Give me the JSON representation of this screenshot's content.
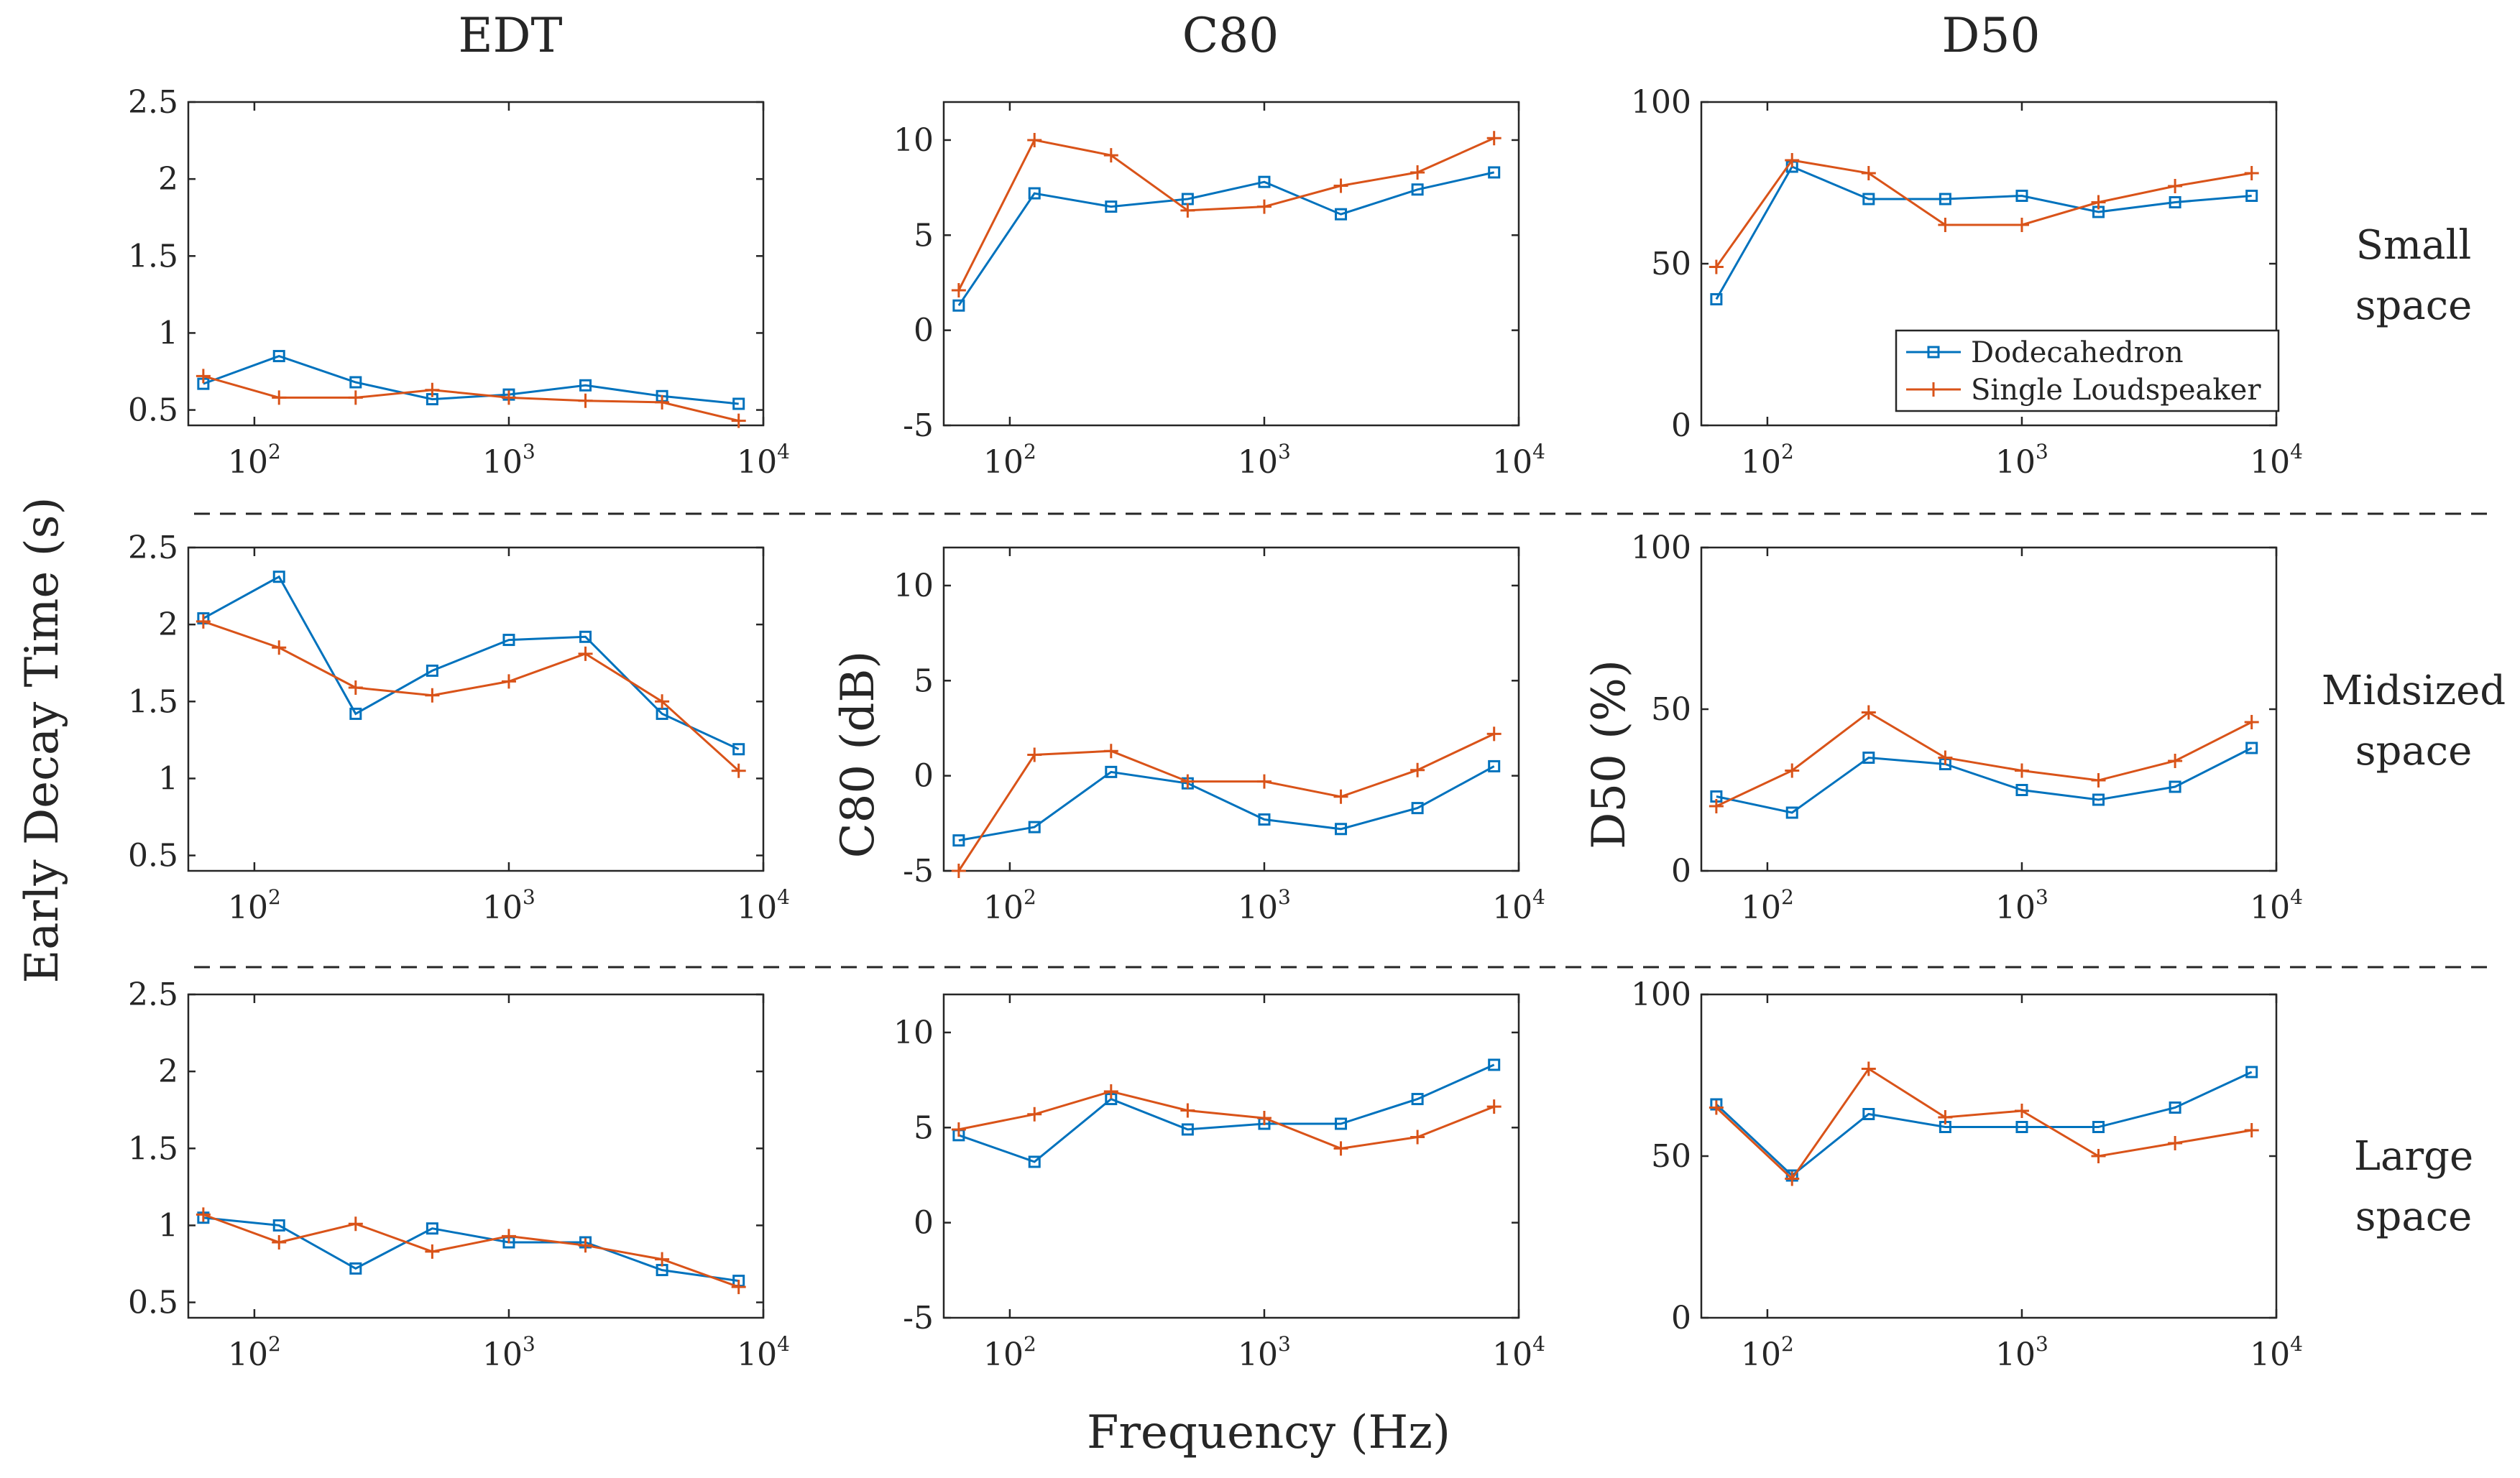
{
  "column_titles": [
    "EDT",
    "C80",
    "D50"
  ],
  "row_labels": [
    {
      "line1": "Small",
      "line2": "space"
    },
    {
      "line1": "Midsized",
      "line2": "space"
    },
    {
      "line1": "Large",
      "line2": "space"
    }
  ],
  "xlabel": "Frequency (Hz)",
  "ylabels": {
    "EDT": "Early Decay Time (s)",
    "C80": "C80 (dB)",
    "D50": "D50 (%)"
  },
  "legend": {
    "series1": "Dodecahedron",
    "series2": "Single Loudspeaker"
  },
  "colors": {
    "series1": "#0072BD",
    "series2": "#D95319"
  },
  "x_ticks": {
    "base": "10",
    "exponents": [
      "2",
      "3",
      "4"
    ]
  },
  "chart_data": [
    {
      "type": "line",
      "row": "Small space",
      "metric": "EDT",
      "x": [
        63,
        125,
        250,
        500,
        1000,
        2000,
        4000,
        8000
      ],
      "xscale": "log",
      "xlim": [
        55,
        10000
      ],
      "ylim": [
        0.4,
        2.5
      ],
      "yticks": [
        "0.5",
        "1",
        "1.5",
        "2",
        "2.5"
      ],
      "series": [
        {
          "name": "Dodecahedron",
          "values": [
            0.67,
            0.85,
            0.68,
            0.57,
            0.6,
            0.66,
            0.59,
            0.54
          ]
        },
        {
          "name": "Single Loudspeaker",
          "values": [
            0.72,
            0.58,
            0.58,
            0.63,
            0.58,
            0.56,
            0.55,
            0.43
          ]
        }
      ]
    },
    {
      "type": "line",
      "row": "Small space",
      "metric": "C80",
      "x": [
        63,
        125,
        250,
        500,
        1000,
        2000,
        4000,
        8000
      ],
      "xscale": "log",
      "xlim": [
        55,
        10000
      ],
      "ylim": [
        -5,
        12
      ],
      "yticks": [
        "-5",
        "0",
        "5",
        "10"
      ],
      "series": [
        {
          "name": "Dodecahedron",
          "values": [
            1.3,
            7.2,
            6.5,
            6.9,
            7.8,
            6.1,
            7.4,
            8.3
          ]
        },
        {
          "name": "Single Loudspeaker",
          "values": [
            2.1,
            10.0,
            9.2,
            6.3,
            6.5,
            7.6,
            8.3,
            10.1
          ]
        }
      ]
    },
    {
      "type": "line",
      "row": "Small space",
      "metric": "D50",
      "x": [
        63,
        125,
        250,
        500,
        1000,
        2000,
        4000,
        8000
      ],
      "xscale": "log",
      "xlim": [
        55,
        10000
      ],
      "ylim": [
        0,
        100
      ],
      "yticks": [
        "0",
        "50",
        "100"
      ],
      "series": [
        {
          "name": "Dodecahedron",
          "values": [
            39,
            80,
            70,
            70,
            71,
            66,
            69,
            71
          ]
        },
        {
          "name": "Single Loudspeaker",
          "values": [
            49,
            82,
            78,
            62,
            62,
            69,
            74,
            78
          ]
        }
      ]
    },
    {
      "type": "line",
      "row": "Midsized space",
      "metric": "EDT",
      "x": [
        63,
        125,
        250,
        500,
        1000,
        2000,
        4000,
        8000
      ],
      "xscale": "log",
      "xlim": [
        55,
        10000
      ],
      "ylim": [
        0.4,
        2.5
      ],
      "yticks": [
        "0.5",
        "1",
        "1.5",
        "2",
        "2.5"
      ],
      "series": [
        {
          "name": "Dodecahedron",
          "values": [
            2.04,
            2.31,
            1.42,
            1.7,
            1.9,
            1.92,
            1.42,
            1.19
          ]
        },
        {
          "name": "Single Loudspeaker",
          "values": [
            2.02,
            1.85,
            1.59,
            1.54,
            1.63,
            1.81,
            1.5,
            1.05
          ]
        }
      ]
    },
    {
      "type": "line",
      "row": "Midsized space",
      "metric": "C80",
      "x": [
        63,
        125,
        250,
        500,
        1000,
        2000,
        4000,
        8000
      ],
      "xscale": "log",
      "xlim": [
        55,
        10000
      ],
      "ylim": [
        -5,
        12
      ],
      "yticks": [
        "-5",
        "0",
        "5",
        "10"
      ],
      "series": [
        {
          "name": "Dodecahedron",
          "values": [
            -3.4,
            -2.7,
            0.2,
            -0.4,
            -2.3,
            -2.8,
            -1.7,
            0.5
          ]
        },
        {
          "name": "Single Loudspeaker",
          "values": [
            -5.0,
            1.1,
            1.3,
            -0.3,
            -0.3,
            -1.1,
            0.3,
            2.2
          ]
        }
      ]
    },
    {
      "type": "line",
      "row": "Midsized space",
      "metric": "D50",
      "x": [
        63,
        125,
        250,
        500,
        1000,
        2000,
        4000,
        8000
      ],
      "xscale": "log",
      "xlim": [
        55,
        10000
      ],
      "ylim": [
        0,
        100
      ],
      "yticks": [
        "0",
        "50",
        "100"
      ],
      "series": [
        {
          "name": "Dodecahedron",
          "values": [
            23,
            18,
            35,
            33,
            25,
            22,
            26,
            38
          ]
        },
        {
          "name": "Single Loudspeaker",
          "values": [
            20,
            31,
            49,
            35,
            31,
            28,
            34,
            46
          ]
        }
      ]
    },
    {
      "type": "line",
      "row": "Large space",
      "metric": "EDT",
      "x": [
        63,
        125,
        250,
        500,
        1000,
        2000,
        4000,
        8000
      ],
      "xscale": "log",
      "xlim": [
        55,
        10000
      ],
      "ylim": [
        0.4,
        2.5
      ],
      "yticks": [
        "0.5",
        "1",
        "1.5",
        "2",
        "2.5"
      ],
      "series": [
        {
          "name": "Dodecahedron",
          "values": [
            1.05,
            1.0,
            0.72,
            0.98,
            0.89,
            0.89,
            0.71,
            0.64
          ]
        },
        {
          "name": "Single Loudspeaker",
          "values": [
            1.07,
            0.89,
            1.01,
            0.83,
            0.93,
            0.87,
            0.78,
            0.6
          ]
        }
      ]
    },
    {
      "type": "line",
      "row": "Large space",
      "metric": "C80",
      "x": [
        63,
        125,
        250,
        500,
        1000,
        2000,
        4000,
        8000
      ],
      "xscale": "log",
      "xlim": [
        55,
        10000
      ],
      "ylim": [
        -5,
        12
      ],
      "yticks": [
        "-5",
        "0",
        "5",
        "10"
      ],
      "series": [
        {
          "name": "Dodecahedron",
          "values": [
            4.6,
            3.2,
            6.5,
            4.9,
            5.2,
            5.2,
            6.5,
            8.3
          ]
        },
        {
          "name": "Single Loudspeaker",
          "values": [
            4.9,
            5.7,
            6.9,
            5.9,
            5.5,
            3.9,
            4.5,
            6.1
          ]
        }
      ]
    },
    {
      "type": "line",
      "row": "Large space",
      "metric": "D50",
      "x": [
        63,
        125,
        250,
        500,
        1000,
        2000,
        4000,
        8000
      ],
      "xscale": "log",
      "xlim": [
        55,
        10000
      ],
      "ylim": [
        0,
        100
      ],
      "yticks": [
        "0",
        "50",
        "100"
      ],
      "series": [
        {
          "name": "Dodecahedron",
          "values": [
            66,
            44,
            63,
            59,
            59,
            59,
            65,
            76
          ]
        },
        {
          "name": "Single Loudspeaker",
          "values": [
            65,
            43,
            77,
            62,
            64,
            50,
            54,
            58
          ]
        }
      ]
    }
  ]
}
